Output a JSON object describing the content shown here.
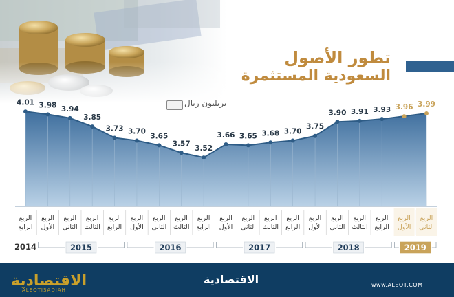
{
  "title_line1": "تطور الأصول",
  "title_line2": "السعودية المستثمرة",
  "unit_label": "تريليون ريال",
  "brand_logo": "الاقتصادية",
  "brand_logo_sub": "ALEQTISADIAH",
  "brand_center": "الاقتصادية",
  "url": "www.ALEQT.COM",
  "colors": {
    "title": "#c08b3e",
    "area": "#3f6f9e",
    "line": "#2e5c86",
    "highlight": "#c9a35a",
    "footer": "#0f3d62",
    "bar": "#2f6190"
  },
  "chart_data": {
    "type": "area",
    "title": "",
    "xlabel": "",
    "ylabel": "تريليون ريال",
    "values": [
      4.01,
      3.98,
      3.94,
      3.85,
      3.73,
      3.7,
      3.65,
      3.57,
      3.52,
      3.66,
      3.65,
      3.68,
      3.7,
      3.75,
      3.9,
      3.91,
      3.93,
      3.96,
      3.99
    ],
    "value_labels": [
      "4.01",
      "3.98",
      "3.94",
      "3.85",
      "3.73",
      "3.70",
      "3.65",
      "3.57",
      "3.52",
      "3.66",
      "3.65",
      "3.68",
      "3.70",
      "3.75",
      "3.90",
      "3.91",
      "3.93",
      "3.96",
      "3.99"
    ],
    "quarters": [
      [
        "الربع",
        "الرابع"
      ],
      [
        "الربع",
        "الأول"
      ],
      [
        "الربع",
        "الثاني"
      ],
      [
        "الربع",
        "الثالث"
      ],
      [
        "الربع",
        "الرابع"
      ],
      [
        "الربع",
        "الأول"
      ],
      [
        "الربع",
        "الثاني"
      ],
      [
        "الربع",
        "الثالث"
      ],
      [
        "الربع",
        "الرابع"
      ],
      [
        "الربع",
        "الأول"
      ],
      [
        "الربع",
        "الثاني"
      ],
      [
        "الربع",
        "الثالث"
      ],
      [
        "الربع",
        "الرابع"
      ],
      [
        "الربع",
        "الأول"
      ],
      [
        "الربع",
        "الثاني"
      ],
      [
        "الربع",
        "الثالث"
      ],
      [
        "الربع",
        "الرابع"
      ],
      [
        "الربع",
        "الأول"
      ],
      [
        "الربع",
        "الثاني"
      ]
    ],
    "highlight_from_index": 17,
    "years": [
      {
        "label": "2014",
        "start": 0,
        "end": 0,
        "boxed": false,
        "highlight": false
      },
      {
        "label": "2015",
        "start": 1,
        "end": 4,
        "boxed": true,
        "highlight": false
      },
      {
        "label": "2016",
        "start": 5,
        "end": 8,
        "boxed": true,
        "highlight": false
      },
      {
        "label": "2017",
        "start": 9,
        "end": 12,
        "boxed": true,
        "highlight": false
      },
      {
        "label": "2018",
        "start": 13,
        "end": 16,
        "boxed": true,
        "highlight": false
      },
      {
        "label": "2019",
        "start": 17,
        "end": 18,
        "boxed": true,
        "highlight": true
      }
    ],
    "ylim": [
      3.0,
      4.1
    ],
    "grid": false,
    "legend": "none"
  }
}
